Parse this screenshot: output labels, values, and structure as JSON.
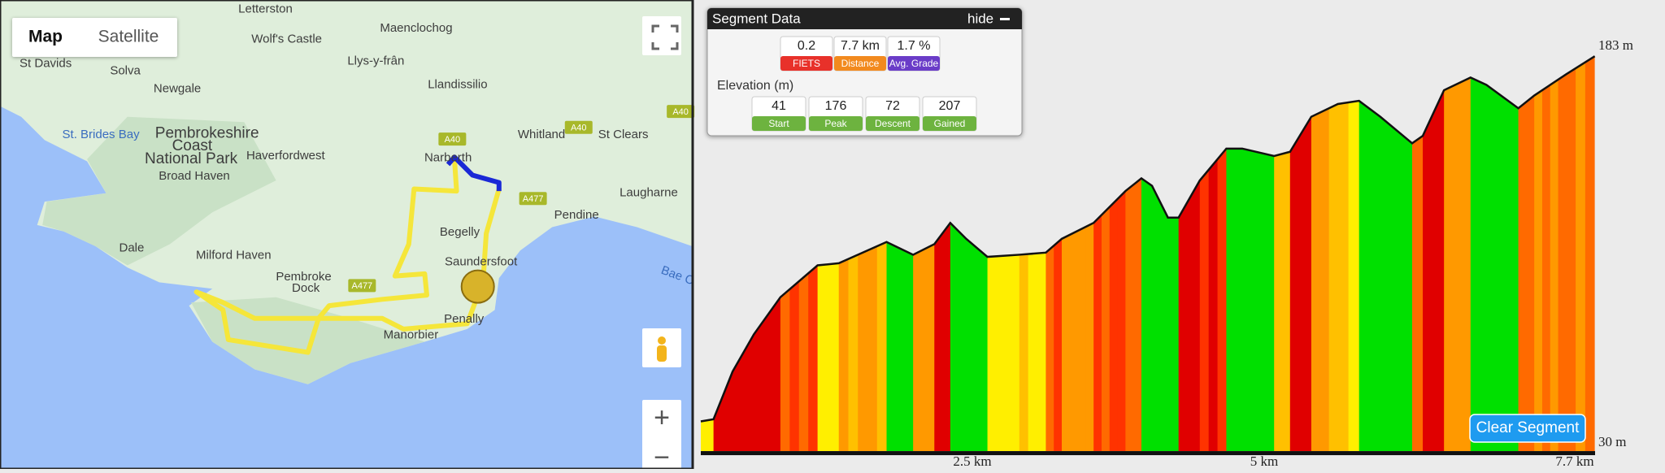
{
  "map": {
    "buttons": [
      "Map",
      "Satellite"
    ],
    "zoom": [
      "+",
      "−"
    ],
    "labels": [
      "Letterston",
      "Maenclochog",
      "Wolf's Castle",
      "Llys-y-frân",
      "St Davids",
      "Solva",
      "Newgale",
      "Llandissilio",
      "St. Brides Bay",
      "Pembrokeshire",
      "Coast",
      "National Park",
      "Haverfordwest",
      "Whitland",
      "St Clears",
      "Narberth",
      "Broad Haven",
      "Laugharne",
      "Pendine",
      "Begelly",
      "Dale",
      "Milford Haven",
      "Saundersfoot",
      "Pembroke",
      "Dock",
      "Bae C",
      "Penally",
      "Manorbier"
    ],
    "roads": [
      "A40",
      "A40",
      "A40",
      "A477",
      "A477"
    ]
  },
  "segment_panel": {
    "title": "Segment Data",
    "hide": "hide",
    "stats": [
      {
        "value": "0.2",
        "label": "FIETS"
      },
      {
        "value": "7.7 km",
        "label": "Distance"
      },
      {
        "value": "1.7 %",
        "label": "Avg. Grade"
      }
    ],
    "elevation_title": "Elevation (m)",
    "elevation_stats": [
      {
        "value": "41",
        "label": "Start"
      },
      {
        "value": "176",
        "label": "Peak"
      },
      {
        "value": "72",
        "label": "Descent"
      },
      {
        "value": "207",
        "label": "Gained"
      }
    ]
  },
  "profile": {
    "y_top": "183 m",
    "y_bottom": "30 m",
    "x_labels": [
      "2.5 km",
      "5 km",
      "7.7 km"
    ],
    "clear_button": "Clear Segment"
  }
}
